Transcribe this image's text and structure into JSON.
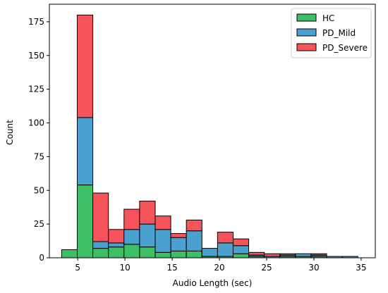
{
  "chart_data": {
    "type": "bar",
    "stacked": true,
    "title": "",
    "xlabel": "Audio Length (sec)",
    "ylabel": "Count",
    "xlim": [
      2,
      36.5
    ],
    "ylim": [
      0,
      188
    ],
    "xticks": [
      5,
      10,
      15,
      20,
      25,
      30,
      35
    ],
    "yticks": [
      0,
      25,
      50,
      75,
      100,
      125,
      150,
      175
    ],
    "grid": false,
    "legend_position": "top-right",
    "bin_edges": [
      3.3,
      4.95,
      6.6,
      8.25,
      9.9,
      11.55,
      13.2,
      14.85,
      16.5,
      18.15,
      19.8,
      21.45,
      23.1,
      24.75,
      26.4,
      28.05,
      29.7,
      31.35,
      33.0,
      34.65
    ],
    "series": [
      {
        "name": "HC",
        "color": "#3dbf66",
        "values": [
          6,
          54,
          7,
          8,
          10,
          8,
          4,
          5,
          5,
          1,
          1,
          3,
          1,
          0,
          1,
          1,
          1,
          0,
          0
        ]
      },
      {
        "name": "PD_Mild",
        "color": "#4aa0cf",
        "values": [
          0,
          50,
          5,
          3,
          11,
          17,
          17,
          10,
          15,
          6,
          10,
          6,
          1,
          1,
          1,
          2,
          1,
          1,
          1
        ]
      },
      {
        "name": "PD_Severe",
        "color": "#f5555a",
        "values": [
          0,
          76,
          36,
          10,
          15,
          17,
          10,
          3,
          8,
          0,
          8,
          5,
          2,
          2,
          1,
          0,
          1,
          0,
          0
        ]
      }
    ]
  }
}
